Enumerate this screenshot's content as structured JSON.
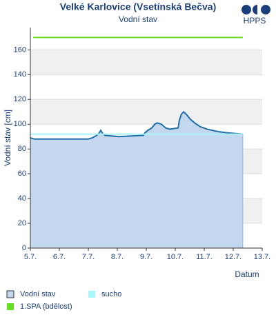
{
  "chart_data": {
    "type": "line",
    "title": "Velké Karlovice (Vsetínská Bečva)",
    "subtitle": "Vodní stav",
    "logo": "HPPS",
    "ylabel": "Vodní stav [cm]",
    "xlabel": "Datum",
    "ylim": [
      0,
      178
    ],
    "yticks": [
      0,
      20,
      40,
      60,
      80,
      100,
      120,
      140,
      160
    ],
    "xlim": [
      5,
      13
    ],
    "xticks": [
      {
        "value": 5,
        "label": "5.7."
      },
      {
        "value": 6,
        "label": "6.7."
      },
      {
        "value": 7,
        "label": "7.7."
      },
      {
        "value": 8,
        "label": "8.7."
      },
      {
        "value": 9,
        "label": "9.7."
      },
      {
        "value": 10,
        "label": "10.7."
      },
      {
        "value": 11,
        "label": "11.7."
      },
      {
        "value": 12,
        "label": "12.7."
      },
      {
        "value": 13,
        "label": "13.7."
      }
    ],
    "grid": true,
    "series": [
      {
        "name": "Vodní stav",
        "color": "#1f6fa8",
        "fill": "#c3d7ee",
        "x": [
          5.0,
          5.14,
          7.0,
          7.14,
          7.29,
          7.38,
          7.43,
          7.48,
          7.57,
          8.05,
          8.9,
          8.95,
          9.05,
          9.19,
          9.29,
          9.38,
          9.52,
          9.67,
          9.81,
          10.1,
          10.14,
          10.21,
          10.29,
          10.38,
          10.52,
          10.67,
          10.86,
          11.1,
          11.48,
          11.81,
          12.33
        ],
        "values": [
          89,
          88,
          88,
          89,
          91,
          93,
          95,
          93,
          91,
          90,
          91,
          93,
          95,
          97,
          100,
          101,
          100,
          97,
          96,
          97,
          103,
          108,
          110,
          108,
          104,
          101,
          98,
          96,
          94,
          93,
          92
        ]
      },
      {
        "name": "sucho",
        "color": "#a8f5f5",
        "x": [
          5.0,
          12.33
        ],
        "values": [
          92,
          92
        ]
      },
      {
        "name": "1.SPA (bdělost)",
        "color": "#66dd22",
        "x": [
          5.1,
          12.33
        ],
        "values": [
          170,
          170
        ]
      }
    ]
  }
}
